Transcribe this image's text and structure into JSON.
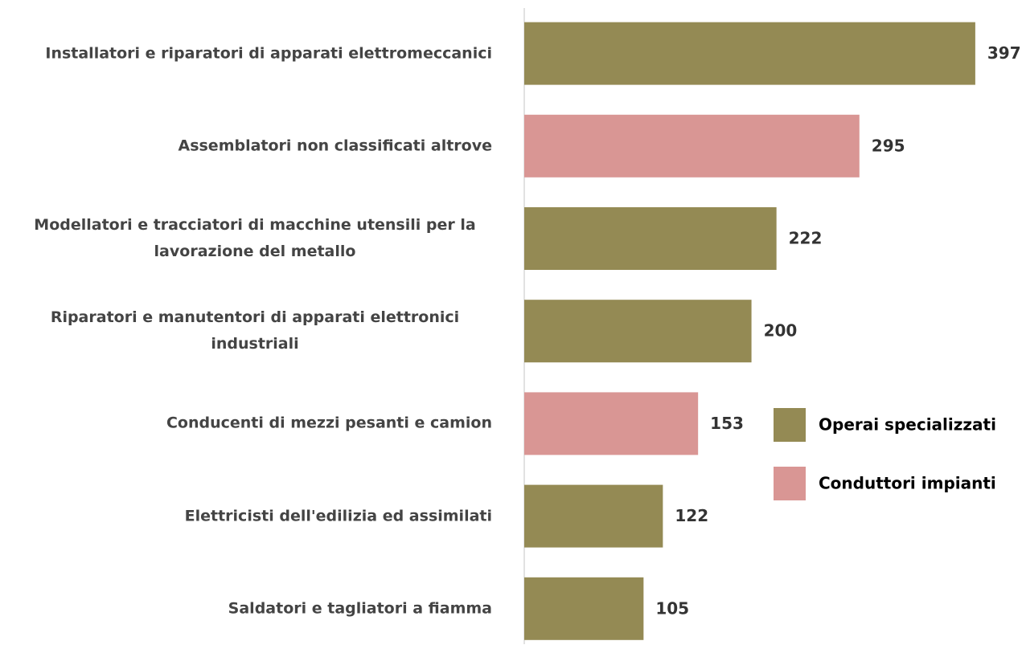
{
  "chart_data": {
    "type": "bar",
    "orientation": "horizontal",
    "categories": [
      "Installatori e riparatori di apparati elettromeccanici",
      "Assemblatori non classificati altrove",
      "Modellatori e tracciatori di macchine utensili per la lavorazione del metallo",
      "Riparatori e manutentori di apparati elettronici industriali",
      "Conducenti di mezzi pesanti e camion",
      "Elettricisti dell'edilizia ed assimilati",
      "Saldatori e tagliatori a fiamma"
    ],
    "series": [
      {
        "name": "Operai specializzati",
        "color": "#948a54",
        "values": [
          397,
          null,
          222,
          200,
          null,
          122,
          105
        ]
      },
      {
        "name": "Conduttori impianti",
        "color": "#d99694",
        "values": [
          null,
          295,
          null,
          null,
          153,
          null,
          null
        ]
      }
    ],
    "xlim": [
      0,
      436
    ]
  }
}
